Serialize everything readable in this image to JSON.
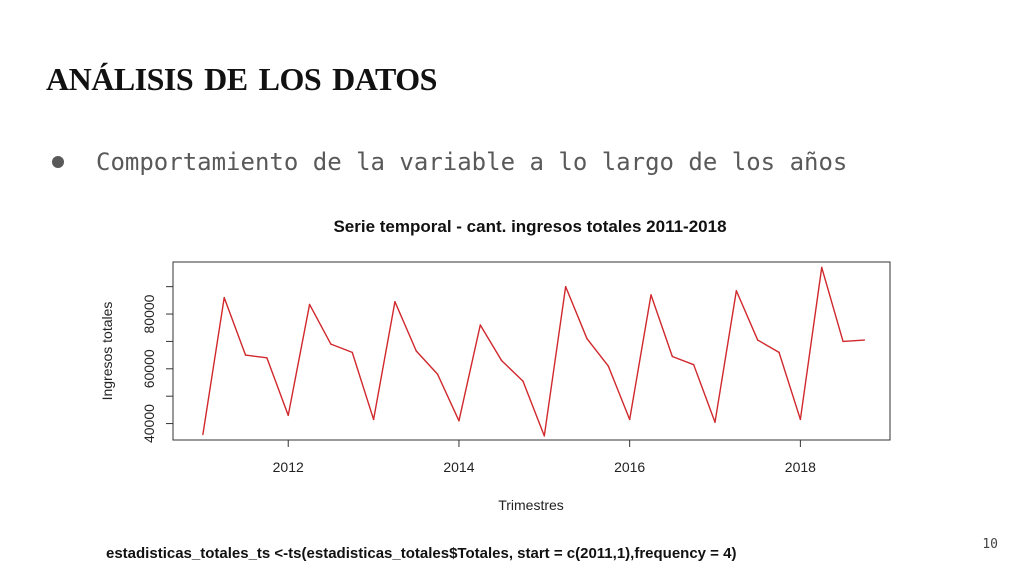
{
  "slide": {
    "title": "análisis de los datos",
    "bullet": "Comportamiento de la variable a lo largo de los años",
    "code": "estadisticas_totales_ts <-ts(estadisticas_totales$Totales, start = c(2011,1),frequency = 4)",
    "page_number": "10"
  },
  "chart_data": {
    "type": "line",
    "title": "Serie temporal - cant. ingresos totales 2011-2018",
    "xlabel": "Trimestres",
    "ylabel": "Ingresos totales",
    "x_ticks": [
      2012,
      2014,
      2016,
      2018
    ],
    "y_ticks": [
      40000,
      60000,
      80000
    ],
    "xlim": [
      2010.65,
      2019.05
    ],
    "ylim": [
      34000,
      99000
    ],
    "line_color": "#d0282c",
    "grid": false,
    "series": [
      {
        "x": [
          2011.0,
          2011.25,
          2011.5,
          2011.75,
          2012.0,
          2012.25,
          2012.5,
          2012.75,
          2013.0,
          2013.25,
          2013.5,
          2013.75,
          2014.0,
          2014.25,
          2014.5,
          2014.75,
          2015.0,
          2015.25,
          2015.5,
          2015.75,
          2016.0,
          2016.25,
          2016.5,
          2016.75,
          2017.0,
          2017.25,
          2017.5,
          2017.75,
          2018.0,
          2018.25,
          2018.5,
          2018.75
        ],
        "values": [
          36000,
          86000,
          65000,
          64000,
          43000,
          83500,
          69000,
          66000,
          41500,
          84500,
          66500,
          58000,
          41000,
          76000,
          63000,
          55500,
          35500,
          90000,
          71000,
          61000,
          41500,
          87000,
          64500,
          61500,
          40500,
          88500,
          70500,
          66000,
          41500,
          97000,
          70000,
          70500
        ]
      }
    ]
  }
}
